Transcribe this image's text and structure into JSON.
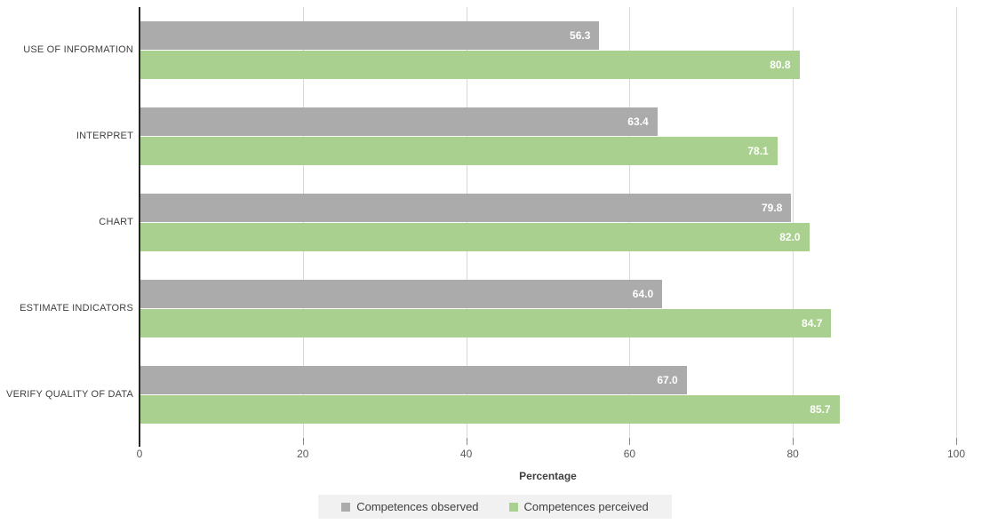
{
  "chart_data": {
    "type": "bar",
    "orientation": "horizontal",
    "title": "",
    "categories": [
      "USE OF INFORMATION",
      "INTERPRET",
      "CHART",
      "ESTIMATE INDICATORS",
      "VERIFY QUALITY OF DATA"
    ],
    "series": [
      {
        "name": "Competences observed",
        "color": "#ababab",
        "values": [
          56.3,
          63.4,
          79.8,
          64.0,
          67.0
        ]
      },
      {
        "name": "Competences perceived",
        "color": "#a9d08e",
        "values": [
          80.8,
          78.1,
          82.0,
          84.7,
          85.7
        ]
      }
    ],
    "xlabel": "Percentage",
    "ylabel": "",
    "xlim": [
      0,
      100
    ],
    "xticks": [
      0,
      20,
      40,
      60,
      80,
      100
    ],
    "grid": true,
    "value_labels": "inside-end, 1 decimal, white",
    "legend_position": "bottom-center"
  },
  "colors": {
    "gridline": "#d9d9d9",
    "axis_line": "#262626",
    "tick_mark": "#898989",
    "tick_label": "#595959",
    "category_label": "#404040",
    "value_label": "#ffffff",
    "legend_background": "#f1f1f1",
    "background": "#ffffff"
  }
}
